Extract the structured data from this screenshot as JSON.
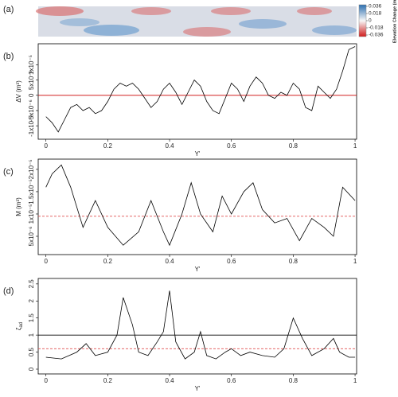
{
  "chart_data": [
    {
      "type": "heatmap",
      "panel": "(a)",
      "colorbar_label": "Elevation Change (m)",
      "clim": [
        -0.04,
        0.04
      ],
      "colorbar_ticks": [
        0.036,
        0.018,
        0,
        -0.018,
        -0.036
      ]
    },
    {
      "type": "line",
      "panel": "(b)",
      "ylabel": "ΔV (m³)",
      "xlabel": "Y'",
      "x": [
        0,
        0.02,
        0.04,
        0.06,
        0.08,
        0.1,
        0.12,
        0.14,
        0.16,
        0.18,
        0.2,
        0.22,
        0.24,
        0.26,
        0.28,
        0.3,
        0.32,
        0.34,
        0.36,
        0.38,
        0.4,
        0.42,
        0.44,
        0.46,
        0.48,
        0.5,
        0.52,
        0.54,
        0.56,
        0.58,
        0.6,
        0.62,
        0.64,
        0.66,
        0.68,
        0.7,
        0.72,
        0.74,
        0.76,
        0.78,
        0.8,
        0.82,
        0.84,
        0.86,
        0.88,
        0.9,
        0.92,
        0.94,
        0.96,
        0.98,
        1
      ],
      "values": [
        -7e-06,
        -9e-06,
        -1.2e-05,
        -8e-06,
        -4e-06,
        -3e-06,
        -5e-06,
        -4e-06,
        -6e-06,
        -5e-06,
        -2e-06,
        2e-06,
        4e-06,
        3e-06,
        4e-06,
        2e-06,
        -1e-06,
        -4e-06,
        -2e-06,
        2e-06,
        4e-06,
        1e-06,
        -3e-06,
        1e-06,
        5e-06,
        3e-06,
        -2e-06,
        -5e-06,
        -6e-06,
        -1e-06,
        4e-06,
        2e-06,
        -2e-06,
        3e-06,
        6e-06,
        4e-06,
        0,
        -1e-06,
        1e-06,
        0,
        4e-06,
        2e-06,
        -4e-06,
        -5e-06,
        3e-06,
        1e-06,
        -1e-06,
        2e-06,
        8e-06,
        1.5e-05,
        1.6e-05
      ],
      "color": "#000000",
      "xlim": [
        -0.025,
        1.005
      ],
      "xticks": [
        0,
        0.2,
        0.4,
        0.6,
        0.8,
        1
      ],
      "ylim": [
        -1.44e-05,
        1.69e-05
      ],
      "yticks": [
        {
          "value": -1e-05,
          "label": "-1x10⁻⁵"
        },
        {
          "value": -5e-06,
          "label": "-5x10⁻⁶"
        },
        0,
        {
          "value": 5e-06,
          "label": "5x10⁻⁶"
        },
        {
          "value": 1e-05,
          "label": "1x10⁻⁵"
        }
      ],
      "hlines": [
        {
          "value": 0,
          "color": "#cc0000",
          "style": "solid"
        }
      ]
    },
    {
      "type": "line",
      "panel": "(c)",
      "ylabel": "M (m³)",
      "xlabel": "Y'",
      "x": [
        0,
        0.02,
        0.05,
        0.08,
        0.12,
        0.16,
        0.2,
        0.25,
        0.3,
        0.34,
        0.38,
        0.4,
        0.44,
        0.47,
        0.5,
        0.54,
        0.57,
        0.6,
        0.64,
        0.67,
        0.7,
        0.74,
        0.78,
        0.82,
        0.86,
        0.9,
        0.93,
        0.96,
        1
      ],
      "values": [
        1.6e-05,
        1.9e-05,
        2.1e-05,
        1.6e-05,
        7e-06,
        1.3e-05,
        7e-06,
        3e-06,
        6e-06,
        1.3e-05,
        6e-06,
        3e-06,
        1e-05,
        1.7e-05,
        1e-05,
        6e-06,
        1.4e-05,
        1e-05,
        1.5e-05,
        1.7e-05,
        1.1e-05,
        8e-06,
        9e-06,
        4e-06,
        9e-06,
        7e-06,
        5e-06,
        1.6e-05,
        1.3e-05
      ],
      "color": "#000000",
      "xlim": [
        -0.025,
        1.005
      ],
      "xticks": [
        0,
        0.2,
        0.4,
        0.6,
        0.8,
        1
      ],
      "ylim": [
        9e-07,
        2.23e-05
      ],
      "yticks": [
        {
          "value": 5e-06,
          "label": "5x10⁻⁶"
        },
        {
          "value": 1e-05,
          "label": "1x10⁻⁵"
        },
        {
          "value": 1.5e-05,
          "label": "1.5x10⁻⁵"
        },
        {
          "value": 2e-05,
          "label": "2x10⁻⁵"
        }
      ],
      "hlines": [
        {
          "value": 9.5e-06,
          "color": "#e05050",
          "style": "dashed"
        }
      ]
    },
    {
      "type": "line",
      "panel": "(d)",
      "ylabel": "ζ",
      "ylabel_sub": "ad",
      "xlabel": "Y'",
      "x": [
        0,
        0.05,
        0.1,
        0.13,
        0.16,
        0.2,
        0.23,
        0.25,
        0.28,
        0.3,
        0.33,
        0.36,
        0.38,
        0.4,
        0.42,
        0.45,
        0.48,
        0.5,
        0.52,
        0.55,
        0.58,
        0.6,
        0.63,
        0.66,
        0.7,
        0.74,
        0.77,
        0.8,
        0.83,
        0.86,
        0.9,
        0.93,
        0.95,
        0.98,
        1
      ],
      "values": [
        0.35,
        0.3,
        0.5,
        0.75,
        0.4,
        0.5,
        1.0,
        2.1,
        1.3,
        0.5,
        0.4,
        0.8,
        1.1,
        2.3,
        0.8,
        0.3,
        0.5,
        1.1,
        0.4,
        0.3,
        0.5,
        0.6,
        0.4,
        0.5,
        0.4,
        0.35,
        0.6,
        1.5,
        0.9,
        0.4,
        0.6,
        0.9,
        0.5,
        0.35,
        0.35
      ],
      "color": "#000000",
      "xlim": [
        -0.025,
        1.005
      ],
      "xticks": [
        0,
        0.2,
        0.4,
        0.6,
        0.8,
        1
      ],
      "ylim": [
        -0.14,
        2.66
      ],
      "yticks": [
        0,
        0.5,
        1,
        1.5,
        2,
        2.5
      ],
      "hlines": [
        {
          "value": 1,
          "color": "#000000",
          "style": "solid"
        },
        {
          "value": 0.6,
          "color": "#e05050",
          "style": "dashed"
        }
      ]
    }
  ]
}
